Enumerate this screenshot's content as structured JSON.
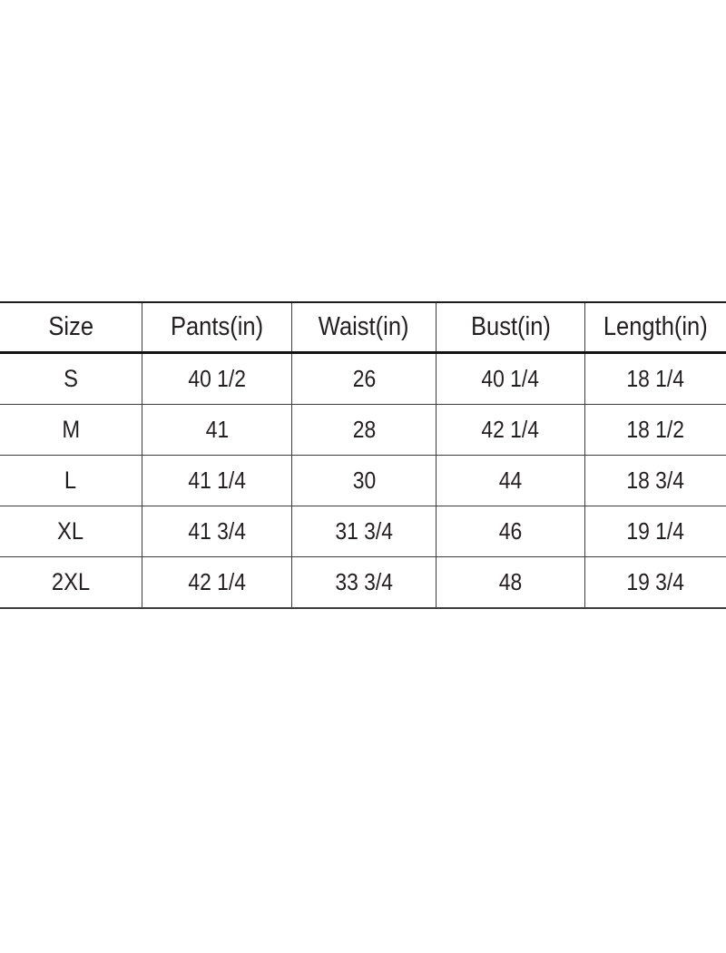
{
  "page": {
    "background_color": "#ffffff"
  },
  "size_chart": {
    "headers": [
      "Size",
      "Pants(in)",
      "Waist(in)",
      "Bust(in)",
      "Length(in)"
    ],
    "rows": [
      [
        "S",
        "40 1/2",
        "26",
        "40 1/4",
        "18 1/4"
      ],
      [
        "M",
        "41",
        "28",
        "42 1/4",
        "18 1/2"
      ],
      [
        "L",
        "41 1/4",
        "30",
        "44",
        "18 3/4"
      ],
      [
        "XL",
        "41 3/4",
        "31 3/4",
        "46",
        "19 1/4"
      ],
      [
        "2XL",
        "42 1/4",
        "33 3/4",
        "48",
        "19 3/4"
      ]
    ],
    "text_color": "#231f20",
    "border_color": "#3d3d3d"
  }
}
